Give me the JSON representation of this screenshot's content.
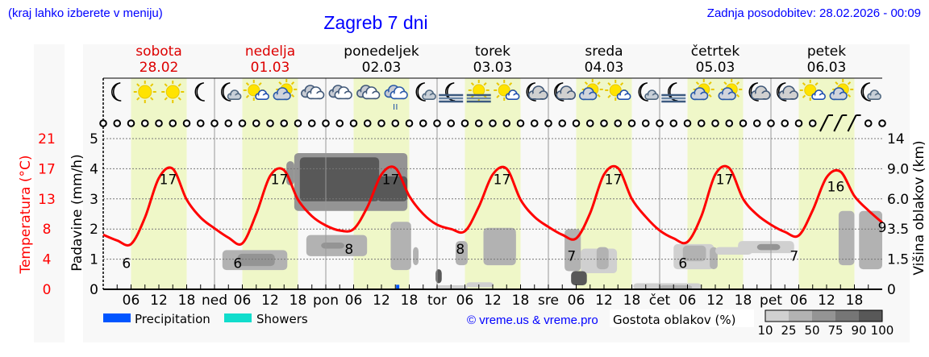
{
  "header": {
    "location_hint": "(kraj lahko izberete v meniju)",
    "title": "Zagreb 7 dni",
    "updated": "Zadnja posodobitev: 28.02.2026 - 00:09"
  },
  "days": [
    {
      "name": "sobota",
      "date": "28.02",
      "color": "#dd0000",
      "abbr": ""
    },
    {
      "name": "nedelja",
      "date": "01.03",
      "color": "#dd0000",
      "abbr": "ned"
    },
    {
      "name": "ponedeljek",
      "date": "02.03",
      "color": "#000000",
      "abbr": "pon"
    },
    {
      "name": "torek",
      "date": "03.03",
      "color": "#000000",
      "abbr": "tor"
    },
    {
      "name": "sreda",
      "date": "04.03",
      "color": "#000000",
      "abbr": "sre"
    },
    {
      "name": "četrtek",
      "date": "05.03",
      "color": "#000000",
      "abbr": "čet"
    },
    {
      "name": "petek",
      "date": "06.03",
      "color": "#000000",
      "abbr": "pet"
    }
  ],
  "icons": [
    "moon",
    "sun",
    "sun",
    "moon",
    "moon-cloud-small",
    "sun-cloud-small",
    "sun-cloud",
    "cloud",
    "cloud",
    "cloud",
    "cloud-rain",
    "moon-cloud-small",
    "moon-fog",
    "sun-fog",
    "sun-cloud-small",
    "moon-cloud",
    "moon-cloud",
    "sun-cloud",
    "sun-cloud-small",
    "moon-cloud-small",
    "moon-fog",
    "sun-cloud",
    "sun-cloud",
    "moon-cloud",
    "moon-cloud",
    "sun-cloud-small",
    "sun-cloud",
    "moon-cloud-small"
  ],
  "wind": {
    "calm_marker": "circle",
    "barb_indices": [
      52,
      53,
      54
    ]
  },
  "chart_data": {
    "type": "line",
    "x_unit": "hours from Sat 28.02 00:00, 3-hour steps",
    "hour_tick_labels": [
      "06",
      "12",
      "18"
    ],
    "left_axis": {
      "label": "Padavine (mm/h)",
      "ticks": [
        "0",
        "1",
        "2",
        "3",
        "4",
        "5"
      ],
      "ylim": [
        0,
        5
      ]
    },
    "temp_axis": {
      "label": "Temperatura (°C)",
      "ticks": [
        "0",
        "4",
        "8",
        "13",
        "17",
        "21"
      ],
      "ylim": [
        0,
        21
      ],
      "color": "#ff0000"
    },
    "right_axis": {
      "label": "Višina oblakov (km)",
      "ticks": [
        "0",
        "1.5",
        "3.5",
        "6.0",
        "9.0",
        "14"
      ]
    },
    "temperature": {
      "color": "#ff0000",
      "values": [
        7.6,
        6.8,
        6.3,
        10,
        15.5,
        16.8,
        12.5,
        10,
        8.5,
        7.2,
        6.4,
        10.5,
        15.8,
        16.6,
        12.5,
        10.2,
        8.9,
        8.2,
        8.4,
        11.5,
        16,
        16.9,
        13,
        10.5,
        9,
        8.4,
        8.1,
        11.5,
        16,
        16.8,
        12.5,
        10.1,
        8.7,
        7.6,
        7.1,
        10.6,
        16,
        16.9,
        12.6,
        10.1,
        8.2,
        7.1,
        6.6,
        10.2,
        16,
        16.9,
        12.6,
        10.4,
        9,
        8,
        7.5,
        11,
        15.6,
        16.4,
        13,
        11,
        9.3
      ]
    },
    "temp_labels": [
      {
        "hour": 5,
        "value": "6",
        "kind": "min"
      },
      {
        "hour": 14,
        "value": "17",
        "kind": "max"
      },
      {
        "hour": 29,
        "value": "6",
        "kind": "min"
      },
      {
        "hour": 38,
        "value": "17",
        "kind": "max"
      },
      {
        "hour": 53,
        "value": "8",
        "kind": "min"
      },
      {
        "hour": 62,
        "value": "17",
        "kind": "max"
      },
      {
        "hour": 77,
        "value": "8",
        "kind": "min"
      },
      {
        "hour": 86,
        "value": "17",
        "kind": "max"
      },
      {
        "hour": 101,
        "value": "7",
        "kind": "min"
      },
      {
        "hour": 110,
        "value": "17",
        "kind": "max"
      },
      {
        "hour": 125,
        "value": "6",
        "kind": "min"
      },
      {
        "hour": 134,
        "value": "17",
        "kind": "max"
      },
      {
        "hour": 149,
        "value": "7",
        "kind": "min"
      },
      {
        "hour": 158,
        "value": "16",
        "kind": "max"
      },
      {
        "hour": 168,
        "value": "9",
        "kind": "end"
      }
    ],
    "precipitation": [
      {
        "hour": 63.5,
        "mm": 0.15,
        "type": "Precipitation"
      }
    ],
    "clouds": [
      [
        25.7,
        39.7,
        0.96,
        2.1,
        25
      ],
      [
        29,
        37,
        1.16,
        1.86,
        50
      ],
      [
        41.2,
        65.6,
        5.0,
        11.6,
        50
      ],
      [
        42.4,
        59.5,
        5.8,
        10.9,
        90
      ],
      [
        59.1,
        65.6,
        5.8,
        8.25,
        90
      ],
      [
        39.5,
        41.2,
        7.35,
        10.25,
        50
      ],
      [
        43.8,
        56.9,
        1.7,
        3.1,
        25
      ],
      [
        47,
        52,
        2.2,
        2.6,
        50
      ],
      [
        62,
        66.4,
        0.96,
        4.1,
        25
      ],
      [
        66.8,
        68,
        1.2,
        2.3,
        25
      ],
      [
        71.7,
        73,
        0.3,
        1.0,
        90
      ],
      [
        76,
        78.6,
        1.2,
        2.7,
        25
      ],
      [
        82,
        89,
        1.2,
        3.6,
        25
      ],
      [
        86,
        89,
        1.5,
        3.4,
        25
      ],
      [
        78.3,
        84.2,
        0.1,
        0.35,
        10
      ],
      [
        99.5,
        103,
        0.9,
        3.5,
        25
      ],
      [
        103,
        110.8,
        0.8,
        2.2,
        10
      ],
      [
        106.4,
        109,
        1.0,
        2.3,
        25
      ],
      [
        100.9,
        104.3,
        0.2,
        0.9,
        90
      ],
      [
        123,
        131.7,
        1.0,
        2.5,
        10
      ],
      [
        125,
        130,
        1.4,
        2.4,
        25
      ],
      [
        130.8,
        132.5,
        1.0,
        2.3,
        25
      ],
      [
        132,
        140,
        1.8,
        2.3,
        10
      ],
      [
        136.9,
        149,
        1.9,
        2.7,
        10
      ],
      [
        141,
        146,
        2.1,
        2.5,
        50
      ],
      [
        114.3,
        129,
        0,
        0.3,
        10
      ],
      [
        120,
        127,
        0,
        0.2,
        25
      ],
      [
        71.7,
        78.6,
        0,
        0.2,
        10
      ],
      [
        158.6,
        162,
        1.2,
        5.0,
        25
      ],
      [
        163,
        168,
        1.0,
        5.0,
        25
      ]
    ],
    "legend": {
      "precipitation": {
        "label": "Precipitation",
        "color": "#0055ff"
      },
      "showers": {
        "label": "Showers",
        "color": "#11ddcc"
      },
      "density_title": "Gostota oblakov (%)",
      "density_ticks": [
        "10",
        "25",
        "50",
        "75",
        "90",
        "100"
      ],
      "density_colors": [
        "#d0d0d0",
        "#b2b2b2",
        "#949494",
        "#767676",
        "#585858"
      ]
    },
    "grid": true
  },
  "footer": {
    "credit": "© vreme.us & vreme.pro"
  }
}
